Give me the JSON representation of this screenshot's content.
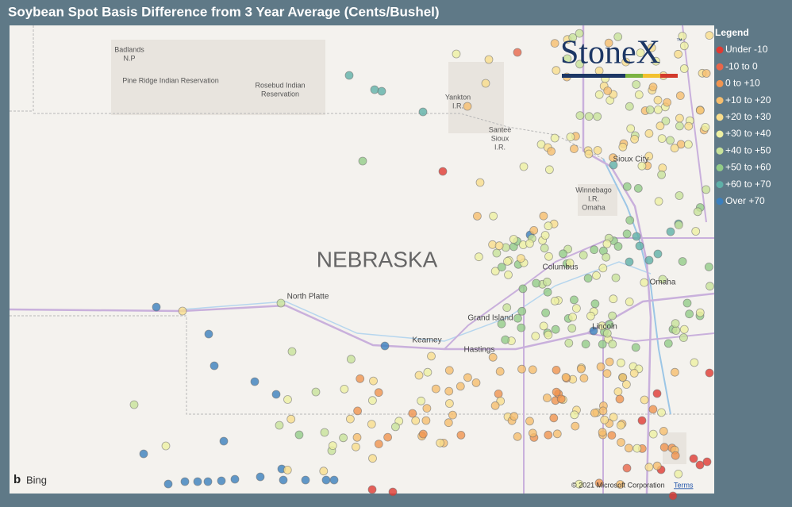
{
  "header": {
    "title": "Soybean Spot Basis Difference from 3 Year Average (Cents/Bushel)"
  },
  "legend": {
    "title": "Legend",
    "items": [
      {
        "label": "Under -10",
        "color": "#e03a32"
      },
      {
        "label": "-10 to 0",
        "color": "#e8664a"
      },
      {
        "label": "0 to +10",
        "color": "#f0944f"
      },
      {
        "label": "+10 to +20",
        "color": "#f6be6e"
      },
      {
        "label": "+20 to +30",
        "color": "#f9dd8c"
      },
      {
        "label": "+30 to +40",
        "color": "#eef0a2"
      },
      {
        "label": "+40 to +50",
        "color": "#c8e29a"
      },
      {
        "label": "+50 to +60",
        "color": "#93cc88"
      },
      {
        "label": "+60 to +70",
        "color": "#5fb0a8"
      },
      {
        "label": "Over +70",
        "color": "#3b7fbd"
      }
    ]
  },
  "map": {
    "logo": {
      "text": "StoneX",
      "mark": "™"
    },
    "labels": [
      {
        "lines": [
          "Badlands",
          "N.P"
        ]
      },
      {
        "lines": [
          "Pine Ridge Indian Reservation"
        ]
      },
      {
        "lines": [
          "Rosebud Indian",
          "Reservation"
        ]
      },
      {
        "lines": [
          "Yankton",
          "I.R."
        ]
      },
      {
        "lines": [
          "Santee",
          "Sioux",
          "I.R."
        ]
      },
      {
        "lines": [
          "Sioux City"
        ]
      },
      {
        "lines": [
          "Winnebago",
          "I.R.",
          "Omaha"
        ]
      },
      {
        "lines": [
          "NEBRASKA"
        ]
      },
      {
        "lines": [
          "North Platte"
        ]
      },
      {
        "lines": [
          "Columbus"
        ]
      },
      {
        "lines": [
          "Omaha"
        ]
      },
      {
        "lines": [
          "Grand Island"
        ]
      },
      {
        "lines": [
          "Kearney"
        ]
      },
      {
        "lines": [
          "Hastings"
        ]
      },
      {
        "lines": [
          "Lincoln"
        ]
      }
    ],
    "attribution": {
      "provider": "Bing",
      "copyright": "© 2021 Microsoft Corporation",
      "terms": "Terms"
    }
  }
}
